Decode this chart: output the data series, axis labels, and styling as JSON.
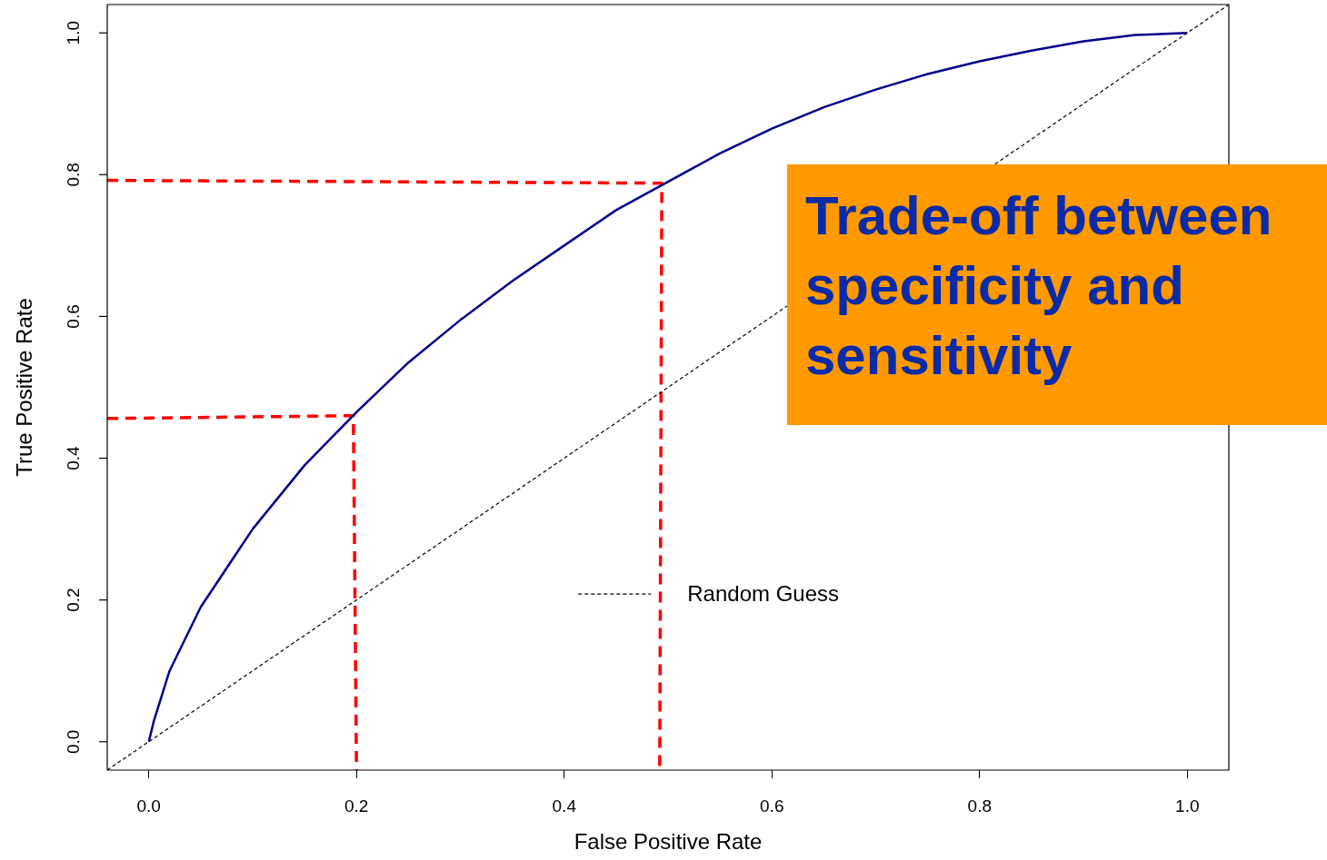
{
  "chart_data": {
    "type": "line",
    "xlabel": "False Positive Rate",
    "ylabel": "True Positive Rate",
    "xlim": [
      -0.04,
      1.04
    ],
    "ylim": [
      -0.04,
      1.04
    ],
    "xticks": [
      {
        "value": 0,
        "label": "0.0"
      },
      {
        "value": 0.2,
        "label": "0.2"
      },
      {
        "value": 0.4,
        "label": "0.4"
      },
      {
        "value": 0.6,
        "label": "0.6"
      },
      {
        "value": 0.8,
        "label": "0.8"
      },
      {
        "value": 1,
        "label": "1.0"
      }
    ],
    "yticks": [
      {
        "value": 0,
        "label": "0.0"
      },
      {
        "value": 0.2,
        "label": "0.2"
      },
      {
        "value": 0.4,
        "label": "0.4"
      },
      {
        "value": 0.6,
        "label": "0.6"
      },
      {
        "value": 0.8,
        "label": "0.8"
      },
      {
        "value": 1,
        "label": "1.0"
      }
    ],
    "marker": "none",
    "legend": "bottom",
    "annotations": [
      "Trade-off between specificity and sensitivity"
    ],
    "series": [
      {
        "color": "#00008b",
        "line_style": "solid",
        "x": [
          0,
          0.005,
          0.02,
          0.05,
          0.1,
          0.15,
          0.2,
          0.25,
          0.3,
          0.35,
          0.4,
          0.45,
          0.5,
          0.55,
          0.6,
          0.65,
          0.7,
          0.75,
          0.8,
          0.85,
          0.9,
          0.95,
          1.0
        ],
        "values": [
          0,
          0.03,
          0.1,
          0.19,
          0.3,
          0.39,
          0.465,
          0.535,
          0.595,
          0.65,
          0.7,
          0.75,
          0.79,
          0.83,
          0.865,
          0.895,
          0.92,
          0.942,
          0.96,
          0.975,
          0.988,
          0.997,
          1.0
        ]
      },
      {
        "name": "Random Guess",
        "color": "#000000",
        "line_style": "dotted",
        "x": [
          -0.04,
          1.04
        ],
        "values": [
          -0.04,
          1.04
        ]
      },
      {
        "color": "#ff0000",
        "line_style": "dashed",
        "x": [
          -0.04,
          0.197,
          0.2
        ],
        "values": [
          0.456,
          0.46,
          -0.04
        ]
      },
      {
        "color": "#ff0000",
        "line_style": "dashed",
        "x": [
          -0.04,
          0.494,
          0.492
        ],
        "values": [
          0.792,
          0.788,
          -0.04
        ]
      }
    ]
  }
}
